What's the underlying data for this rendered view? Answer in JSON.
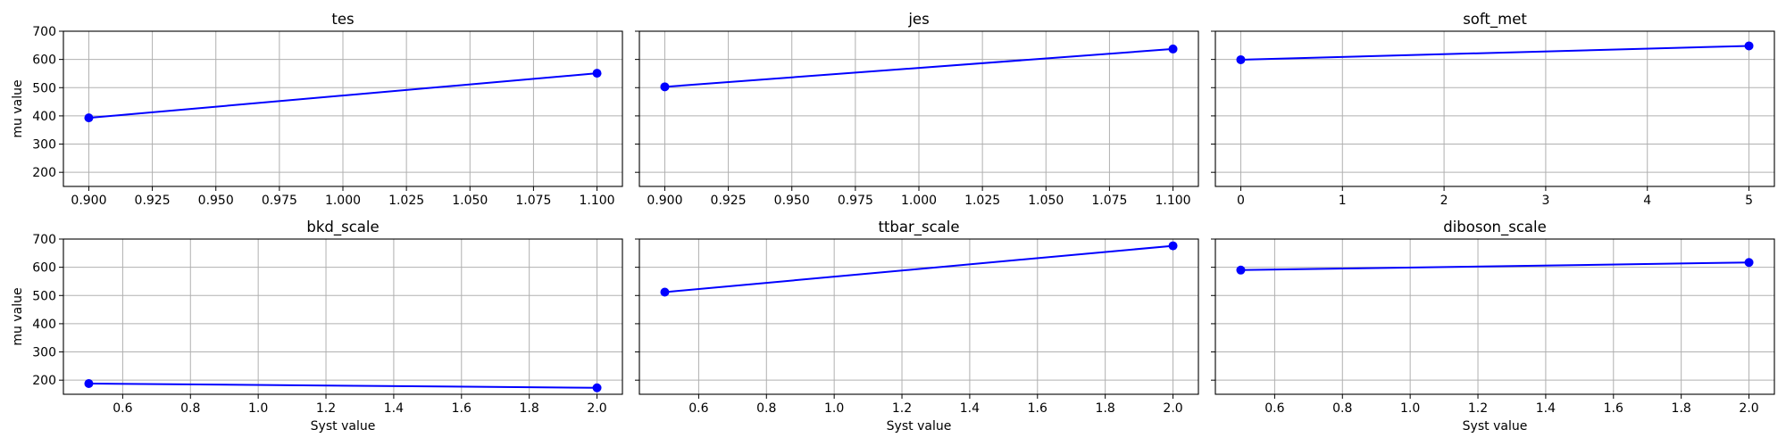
{
  "chart_data": [
    {
      "type": "line",
      "title": "tes",
      "xlabel": "",
      "ylabel": "mu value",
      "xlim": [
        0.89,
        1.11
      ],
      "ylim": [
        150,
        700
      ],
      "xticks": [
        "0.900",
        "0.925",
        "0.950",
        "0.975",
        "1.000",
        "1.025",
        "1.050",
        "1.075",
        "1.100"
      ],
      "yticks": [
        "200",
        "300",
        "400",
        "500",
        "600",
        "700"
      ],
      "grid": true,
      "series": [
        {
          "x": [
            0.9,
            1.1
          ],
          "y": [
            393,
            551
          ],
          "color": "#0000ff"
        }
      ]
    },
    {
      "type": "line",
      "title": "jes",
      "xlabel": "",
      "ylabel": "",
      "xlim": [
        0.89,
        1.11
      ],
      "ylim": [
        150,
        700
      ],
      "xticks": [
        "0.900",
        "0.925",
        "0.950",
        "0.975",
        "1.000",
        "1.025",
        "1.050",
        "1.075",
        "1.100"
      ],
      "yticks": [
        "200",
        "300",
        "400",
        "500",
        "600",
        "700"
      ],
      "grid": true,
      "series": [
        {
          "x": [
            0.9,
            1.1
          ],
          "y": [
            503,
            637
          ],
          "color": "#0000ff"
        }
      ]
    },
    {
      "type": "line",
      "title": "soft_met",
      "xlabel": "",
      "ylabel": "",
      "xlim": [
        -0.25,
        5.25
      ],
      "ylim": [
        150,
        700
      ],
      "xticks": [
        "0",
        "1",
        "2",
        "3",
        "4",
        "5"
      ],
      "yticks": [
        "200",
        "300",
        "400",
        "500",
        "600",
        "700"
      ],
      "grid": true,
      "series": [
        {
          "x": [
            0,
            5
          ],
          "y": [
            599,
            648
          ],
          "color": "#0000ff"
        }
      ]
    },
    {
      "type": "line",
      "title": "bkd_scale",
      "xlabel": "Syst value",
      "ylabel": "mu value",
      "xlim": [
        0.425,
        2.075
      ],
      "ylim": [
        150,
        700
      ],
      "xticks": [
        "0.6",
        "0.8",
        "1.0",
        "1.2",
        "1.4",
        "1.6",
        "1.8",
        "2.0"
      ],
      "yticks": [
        "200",
        "300",
        "400",
        "500",
        "600",
        "700"
      ],
      "grid": true,
      "series": [
        {
          "x": [
            0.5,
            2.0
          ],
          "y": [
            188,
            173
          ],
          "color": "#0000ff"
        }
      ]
    },
    {
      "type": "line",
      "title": "ttbar_scale",
      "xlabel": "Syst value",
      "ylabel": "",
      "xlim": [
        0.425,
        2.075
      ],
      "ylim": [
        150,
        700
      ],
      "xticks": [
        "0.6",
        "0.8",
        "1.0",
        "1.2",
        "1.4",
        "1.6",
        "1.8",
        "2.0"
      ],
      "yticks": [
        "200",
        "300",
        "400",
        "500",
        "600",
        "700"
      ],
      "grid": true,
      "series": [
        {
          "x": [
            0.5,
            2.0
          ],
          "y": [
            512,
            676
          ],
          "color": "#0000ff"
        }
      ]
    },
    {
      "type": "line",
      "title": "diboson_scale",
      "xlabel": "Syst value",
      "ylabel": "",
      "xlim": [
        0.425,
        2.075
      ],
      "ylim": [
        150,
        700
      ],
      "xticks": [
        "0.6",
        "0.8",
        "1.0",
        "1.2",
        "1.4",
        "1.6",
        "1.8",
        "2.0"
      ],
      "yticks": [
        "200",
        "300",
        "400",
        "500",
        "600",
        "700"
      ],
      "grid": true,
      "series": [
        {
          "x": [
            0.5,
            2.0
          ],
          "y": [
            590,
            617
          ],
          "color": "#0000ff"
        }
      ]
    }
  ]
}
